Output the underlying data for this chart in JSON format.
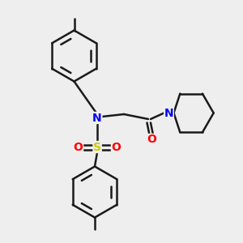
{
  "bg_color": "#eeeeee",
  "bond_color": "#1a1a1a",
  "N_color": "#0000ff",
  "S_color": "#cccc00",
  "O_color": "#ff0000",
  "line_width": 1.8,
  "font_size": 10,
  "fig_size": [
    3.0,
    3.0
  ],
  "dpi": 100,
  "xlim": [
    0,
    10
  ],
  "ylim": [
    0,
    10
  ]
}
